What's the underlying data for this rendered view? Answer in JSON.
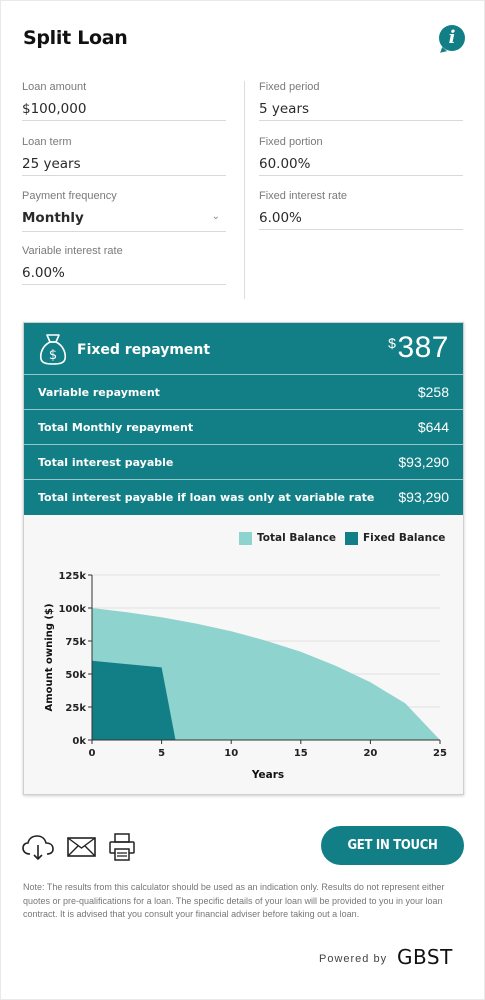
{
  "header": {
    "title": "Split Loan",
    "info_icon": "i"
  },
  "inputs": {
    "left": [
      {
        "label": "Loan amount",
        "value": "$100,000"
      },
      {
        "label": "Loan term",
        "value": "25 years"
      },
      {
        "label": "Payment frequency",
        "value": "Monthly",
        "dropdown": true
      },
      {
        "label": "Variable interest rate",
        "value": "6.00%"
      }
    ],
    "right": [
      {
        "label": "Fixed period",
        "value": "5 years"
      },
      {
        "label": "Fixed portion",
        "value": "60.00%"
      },
      {
        "label": "Fixed interest rate",
        "value": "6.00%"
      }
    ]
  },
  "results": {
    "hero": {
      "label": "Fixed repayment",
      "currency": "$",
      "amount": "387"
    },
    "rows": [
      {
        "label": "Variable repayment",
        "value": "$258"
      },
      {
        "label": "Total Monthly repayment",
        "value": "$644"
      },
      {
        "label": "Total interest payable",
        "value": "$93,290"
      },
      {
        "label": "Total interest payable if loan was only at variable rate",
        "value": "$93,290"
      }
    ]
  },
  "chart_data": {
    "type": "area",
    "title": "",
    "xlabel": "Years",
    "ylabel": "Amount owning ($)",
    "xlim": [
      0,
      25
    ],
    "ylim": [
      0,
      125000
    ],
    "x_ticks": [
      "0",
      "5",
      "10",
      "15",
      "20",
      "25"
    ],
    "y_ticks": [
      "0k",
      "25k",
      "50k",
      "75k",
      "100k",
      "125k"
    ],
    "grid": true,
    "legend_position": "top-right",
    "series": [
      {
        "name": "Total Balance",
        "color": "#8fd3cf",
        "points": [
          [
            0,
            100000
          ],
          [
            2.5,
            96800
          ],
          [
            5,
            93000
          ],
          [
            7.5,
            88200
          ],
          [
            10,
            82400
          ],
          [
            12.5,
            75200
          ],
          [
            15,
            66800
          ],
          [
            17.5,
            56200
          ],
          [
            20,
            43700
          ],
          [
            22.5,
            27800
          ],
          [
            25,
            0
          ]
        ]
      },
      {
        "name": "Fixed Balance",
        "color": "#127f86",
        "points": [
          [
            0,
            60000
          ],
          [
            5,
            55000
          ],
          [
            6,
            0
          ]
        ]
      }
    ]
  },
  "actions": {
    "download_icon": "cloud-download-icon",
    "email_icon": "envelope-icon",
    "print_icon": "printer-icon",
    "cta_label": "GET IN TOUCH"
  },
  "footer": {
    "note": "Note: The results from this calculator should be used as an indication only. Results do not represent either quotes or pre-qualifications for a loan. The specific details of your loan will be provided to you in your loan contract. It is advised that you consult your financial adviser before taking out a loan.",
    "powered_by": "Powered by",
    "brand": "GBST"
  },
  "colors": {
    "accent": "#127f86",
    "total_balance": "#8fd3cf",
    "fixed_balance": "#127f86"
  }
}
